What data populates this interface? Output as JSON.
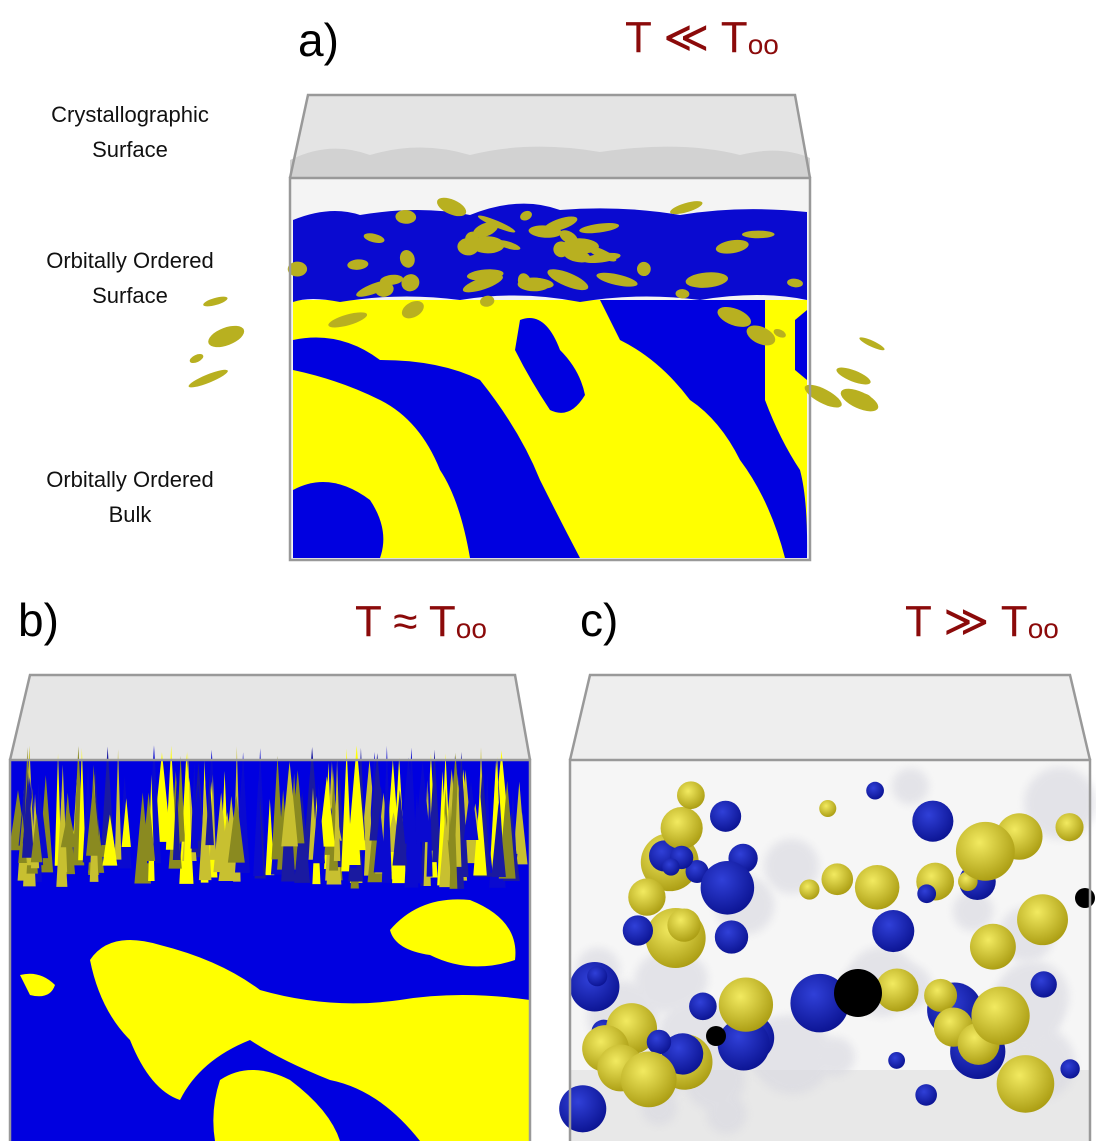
{
  "panels": [
    {
      "label": "a)",
      "temperature": {
        "text": "T ≪ T",
        "subscript": "oo"
      },
      "layers": [
        [
          "Crystallographic",
          "Surface"
        ],
        [
          "Orbitally Ordered",
          "Surface"
        ],
        [
          "Orbitally Ordered",
          "Bulk"
        ]
      ]
    },
    {
      "label": "b)",
      "temperature": {
        "text": "T ≈ T",
        "subscript": "oo"
      }
    },
    {
      "label": "c)",
      "temperature": {
        "text": "T ≫ T",
        "subscript": "oo"
      }
    }
  ]
}
